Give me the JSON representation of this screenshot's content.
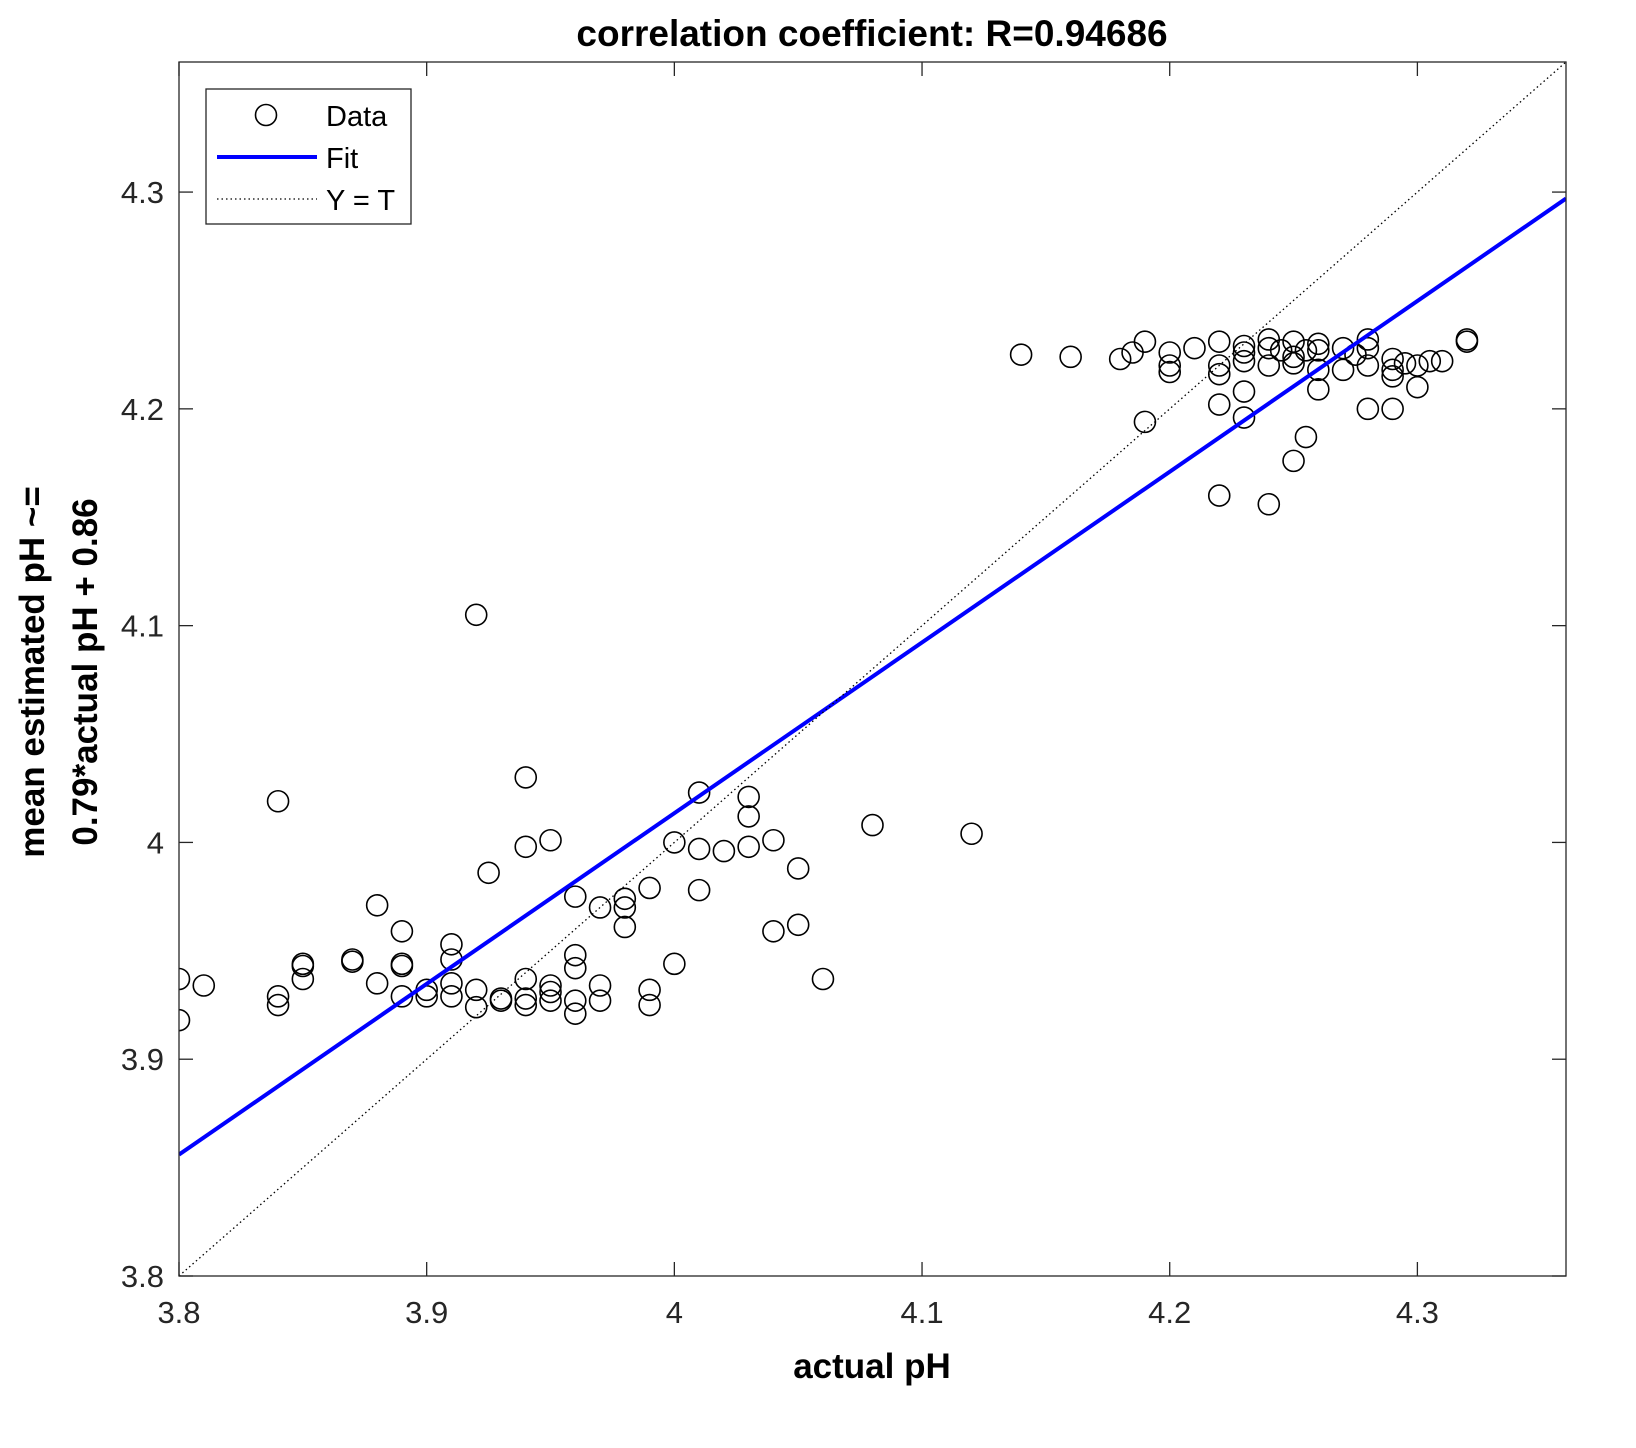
{
  "chart_data": {
    "type": "scatter",
    "title": "correlation coefficient: R=0.94686",
    "xlabel": "actual pH",
    "ylabel": [
      "mean estimated pH ~=",
      "0.79*actual pH + 0.86"
    ],
    "xlim": [
      3.8,
      4.36
    ],
    "ylim": [
      3.8,
      4.36
    ],
    "xticks": [
      3.8,
      3.9,
      4,
      4.1,
      4.2,
      4.3
    ],
    "xtick_labels": [
      "3.8",
      "3.9",
      "4",
      "4.1",
      "4.2",
      "4.3"
    ],
    "yticks": [
      3.8,
      3.9,
      4,
      4.1,
      4.2,
      4.3
    ],
    "ytick_labels": [
      "3.8",
      "3.9",
      "4",
      "4.1",
      "4.2",
      "4.3"
    ],
    "grid": false,
    "legend": {
      "placement": "top-left",
      "entries": [
        "Data",
        "Fit",
        "Y = T"
      ]
    },
    "series": [
      {
        "name": "Data",
        "kind": "markers",
        "marker": "open-circle",
        "color": "#000000",
        "points": [
          [
            3.8,
            3.937
          ],
          [
            3.8,
            3.918
          ],
          [
            3.81,
            3.934
          ],
          [
            3.84,
            4.019
          ],
          [
            3.84,
            3.929
          ],
          [
            3.84,
            3.925
          ],
          [
            3.85,
            3.944
          ],
          [
            3.85,
            3.943
          ],
          [
            3.85,
            3.937
          ],
          [
            3.87,
            3.946
          ],
          [
            3.87,
            3.945
          ],
          [
            3.88,
            3.971
          ],
          [
            3.88,
            3.935
          ],
          [
            3.89,
            3.959
          ],
          [
            3.89,
            3.944
          ],
          [
            3.89,
            3.943
          ],
          [
            3.89,
            3.929
          ],
          [
            3.9,
            3.932
          ],
          [
            3.9,
            3.929
          ],
          [
            3.91,
            3.953
          ],
          [
            3.91,
            3.946
          ],
          [
            3.91,
            3.935
          ],
          [
            3.91,
            3.929
          ],
          [
            3.92,
            4.105
          ],
          [
            3.92,
            3.932
          ],
          [
            3.92,
            3.924
          ],
          [
            3.925,
            3.986
          ],
          [
            3.93,
            3.928
          ],
          [
            3.93,
            3.927
          ],
          [
            3.94,
            4.03
          ],
          [
            3.94,
            3.998
          ],
          [
            3.94,
            3.937
          ],
          [
            3.94,
            3.928
          ],
          [
            3.94,
            3.925
          ],
          [
            3.95,
            4.001
          ],
          [
            3.95,
            3.934
          ],
          [
            3.95,
            3.931
          ],
          [
            3.95,
            3.927
          ],
          [
            3.96,
            3.975
          ],
          [
            3.96,
            3.948
          ],
          [
            3.96,
            3.942
          ],
          [
            3.96,
            3.927
          ],
          [
            3.96,
            3.921
          ],
          [
            3.97,
            3.97
          ],
          [
            3.97,
            3.934
          ],
          [
            3.97,
            3.927
          ],
          [
            3.98,
            3.974
          ],
          [
            3.98,
            3.97
          ],
          [
            3.98,
            3.961
          ],
          [
            3.99,
            3.979
          ],
          [
            3.99,
            3.932
          ],
          [
            3.99,
            3.925
          ],
          [
            4.0,
            4.0
          ],
          [
            4.0,
            3.944
          ],
          [
            4.01,
            4.023
          ],
          [
            4.01,
            3.997
          ],
          [
            4.01,
            3.978
          ],
          [
            4.02,
            3.996
          ],
          [
            4.03,
            4.021
          ],
          [
            4.03,
            4.012
          ],
          [
            4.03,
            3.998
          ],
          [
            4.04,
            4.001
          ],
          [
            4.04,
            3.959
          ],
          [
            4.05,
            3.988
          ],
          [
            4.05,
            3.962
          ],
          [
            4.06,
            3.937
          ],
          [
            4.08,
            4.008
          ],
          [
            4.12,
            4.004
          ],
          [
            4.14,
            4.225
          ],
          [
            4.16,
            4.224
          ],
          [
            4.18,
            4.223
          ],
          [
            4.185,
            4.226
          ],
          [
            4.19,
            4.231
          ],
          [
            4.19,
            4.194
          ],
          [
            4.2,
            4.226
          ],
          [
            4.2,
            4.22
          ],
          [
            4.2,
            4.217
          ],
          [
            4.21,
            4.228
          ],
          [
            4.22,
            4.231
          ],
          [
            4.22,
            4.22
          ],
          [
            4.22,
            4.216
          ],
          [
            4.22,
            4.202
          ],
          [
            4.22,
            4.16
          ],
          [
            4.23,
            4.229
          ],
          [
            4.23,
            4.226
          ],
          [
            4.23,
            4.222
          ],
          [
            4.23,
            4.208
          ],
          [
            4.23,
            4.196
          ],
          [
            4.24,
            4.232
          ],
          [
            4.24,
            4.228
          ],
          [
            4.24,
            4.22
          ],
          [
            4.24,
            4.156
          ],
          [
            4.245,
            4.227
          ],
          [
            4.25,
            4.231
          ],
          [
            4.25,
            4.224
          ],
          [
            4.25,
            4.221
          ],
          [
            4.25,
            4.176
          ],
          [
            4.255,
            4.227
          ],
          [
            4.255,
            4.187
          ],
          [
            4.26,
            4.23
          ],
          [
            4.26,
            4.227
          ],
          [
            4.26,
            4.218
          ],
          [
            4.26,
            4.209
          ],
          [
            4.27,
            4.228
          ],
          [
            4.27,
            4.218
          ],
          [
            4.275,
            4.225
          ],
          [
            4.28,
            4.232
          ],
          [
            4.28,
            4.228
          ],
          [
            4.28,
            4.22
          ],
          [
            4.28,
            4.2
          ],
          [
            4.29,
            4.223
          ],
          [
            4.29,
            4.218
          ],
          [
            4.29,
            4.215
          ],
          [
            4.29,
            4.2
          ],
          [
            4.295,
            4.221
          ],
          [
            4.3,
            4.22
          ],
          [
            4.3,
            4.21
          ],
          [
            4.305,
            4.222
          ],
          [
            4.31,
            4.222
          ],
          [
            4.32,
            4.232
          ],
          [
            4.32,
            4.231
          ]
        ]
      },
      {
        "name": "Fit",
        "kind": "line",
        "color": "#0000ff",
        "slope": 0.7875,
        "intercept": 0.8635
      },
      {
        "name": "Y = T",
        "kind": "dotted-line",
        "color": "#000000",
        "slope": 1,
        "intercept": 0
      }
    ]
  }
}
